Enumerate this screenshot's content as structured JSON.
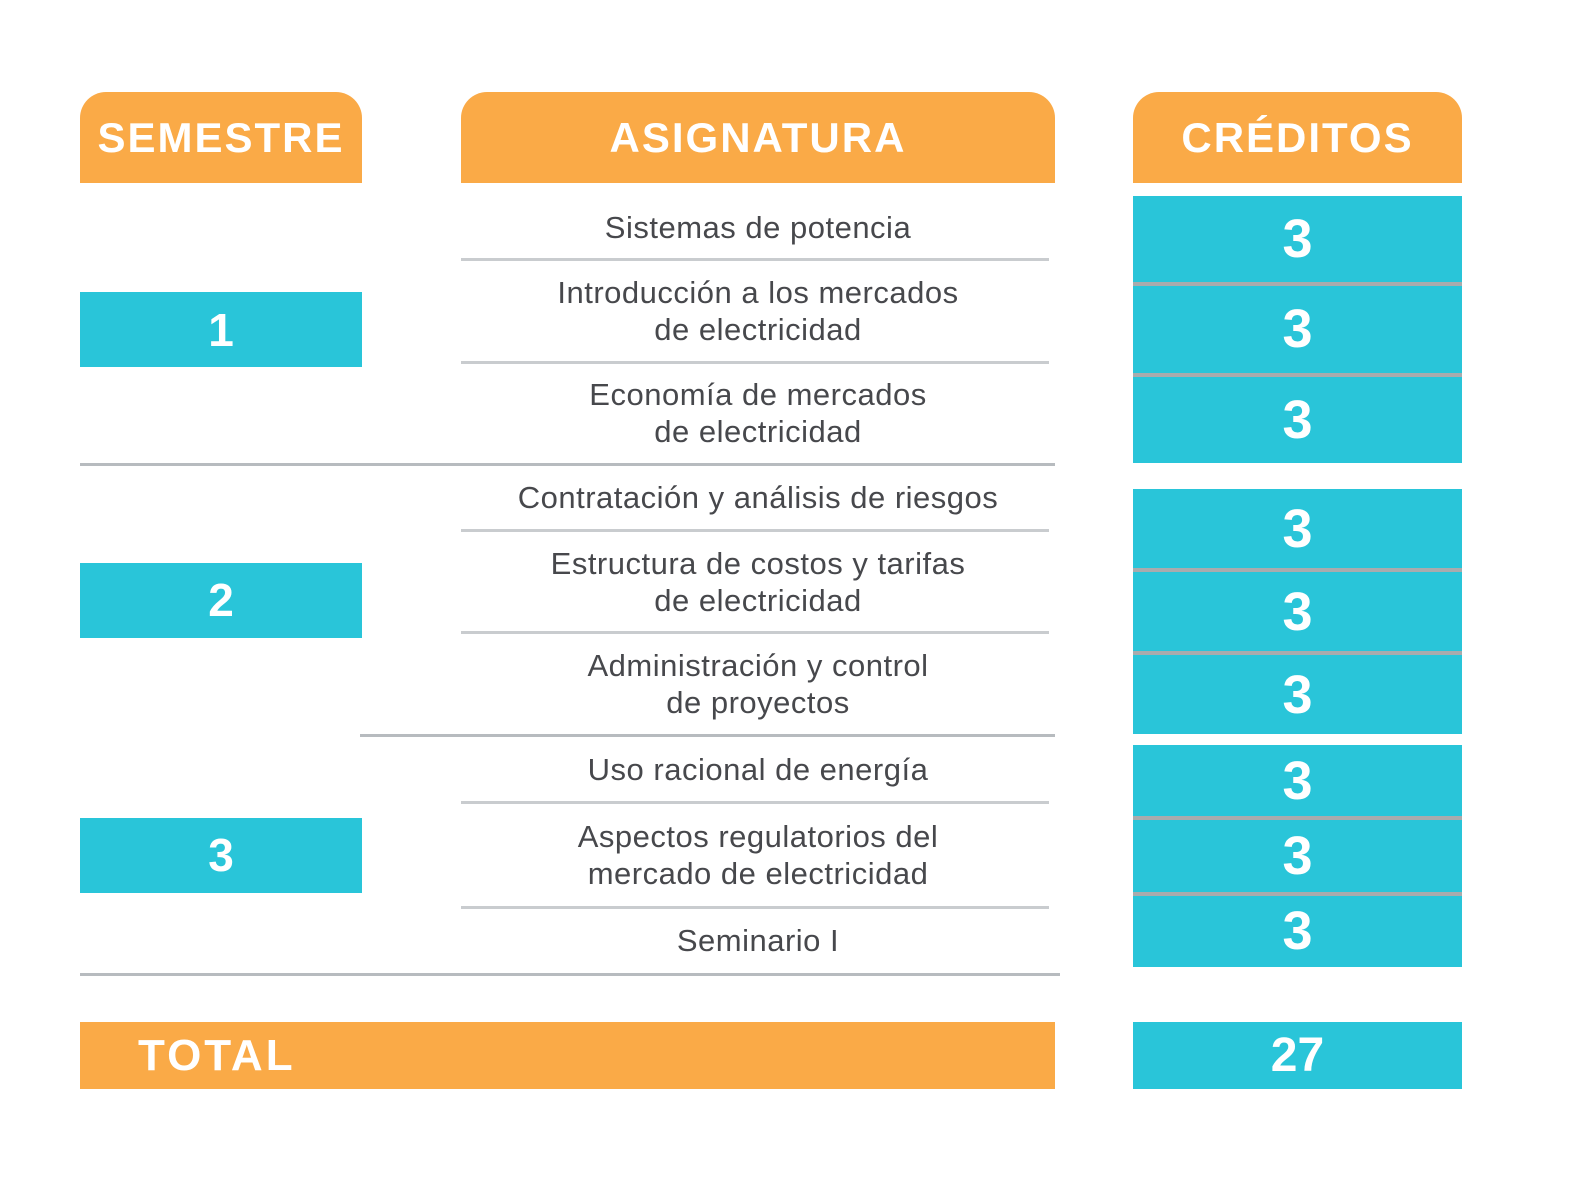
{
  "colors": {
    "header_and_total": "#FAAA47",
    "accent_cyan": "#29C5D9",
    "subject_text": "#47484C",
    "subject_rule": "#C9CCCF",
    "credit_rule": "#A9ABAD",
    "group_divider": "#B7BBBF"
  },
  "header": {
    "semestre": "SEMESTRE",
    "asignatura": "ASIGNATURA",
    "creditos": "CRÉDITOS"
  },
  "groups": [
    {
      "semester": "1",
      "subjects": [
        {
          "lines": [
            "Sistemas de potencia"
          ]
        },
        {
          "lines": [
            "Introducción a los  mercados",
            "de electricidad"
          ]
        },
        {
          "lines": [
            "Economía de mercados",
            "de electricidad"
          ]
        }
      ],
      "credits": [
        "3",
        "3",
        "3"
      ]
    },
    {
      "semester": "2",
      "subjects": [
        {
          "lines": [
            "Contratación y análisis de riesgos"
          ]
        },
        {
          "lines": [
            "Estructura de costos y tarifas",
            "de electricidad"
          ]
        },
        {
          "lines": [
            "Administración y control",
            "de proyectos"
          ]
        }
      ],
      "credits": [
        "3",
        "3",
        "3"
      ]
    },
    {
      "semester": "3",
      "subjects": [
        {
          "lines": [
            "Uso racional de energía"
          ]
        },
        {
          "lines": [
            "Aspectos regulatorios del",
            "mercado de electricidad"
          ]
        },
        {
          "lines": [
            "Seminario I"
          ]
        }
      ],
      "credits": [
        "3",
        "3",
        "3"
      ]
    }
  ],
  "total": {
    "label": "TOTAL",
    "credits": "27"
  }
}
